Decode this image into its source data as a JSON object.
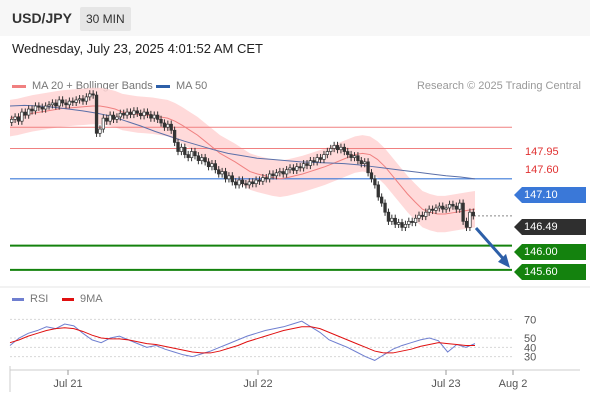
{
  "header": {
    "pair": "USD/JPY",
    "interval": "30 MIN",
    "timestamp": "Wednesday, July 23, 2025 4:01:52 AM CET"
  },
  "legend": {
    "ma20_bb": "MA 20 + Bollinger Bands",
    "ma50": "MA 50",
    "rsi": "RSI",
    "rsi_ma": "9MA",
    "research": "Research © 2025 Trading Central"
  },
  "colors": {
    "bollinger_band": "#ffd4d4",
    "ma20": "#f08080",
    "ma50": "#5a6fa8",
    "resistance": "#f08080",
    "pivot": "#3a78d8",
    "support": "#14820e",
    "arrow": "#2d5fa8",
    "rsi_line": "#6f7fd0",
    "rsi_ma_line": "#e01010",
    "candle": "#333333"
  },
  "chart_data": [
    {
      "type": "candlestick",
      "title": "USD/JPY 30 MIN",
      "x_ticks": [
        "Jul 21",
        "Jul 22",
        "Jul 23",
        "Aug 2"
      ],
      "y_range": [
        145.4,
        148.3
      ],
      "levels": {
        "resistance_2": 147.95,
        "resistance_1": 147.6,
        "pivot": 147.1,
        "current": 146.49,
        "support_1": 146.0,
        "support_2": 145.6
      },
      "level_labels": {
        "resistance_2": "147.95",
        "resistance_1": "147.60",
        "pivot": "147.10",
        "current": "146.49",
        "support_1": "146.00",
        "support_2": "145.60"
      },
      "close": [
        148.08,
        148.12,
        148.05,
        148.2,
        148.15,
        148.25,
        148.22,
        148.3,
        148.28,
        148.25,
        148.3,
        148.32,
        148.35,
        148.3,
        148.4,
        148.35,
        148.32,
        148.38,
        148.36,
        148.4,
        148.42,
        148.38,
        148.45,
        148.5,
        148.48,
        147.85,
        147.92,
        148.1,
        148.05,
        148.15,
        148.08,
        148.12,
        148.18,
        148.15,
        148.2,
        148.16,
        148.22,
        148.18,
        148.14,
        148.2,
        148.16,
        148.1,
        148.15,
        148.08,
        148.02,
        147.95,
        148.0,
        147.9,
        147.7,
        147.55,
        147.62,
        147.5,
        147.45,
        147.55,
        147.48,
        147.4,
        147.45,
        147.38,
        147.3,
        147.35,
        147.25,
        147.18,
        147.22,
        147.1,
        147.15,
        147.05,
        147.0,
        147.08,
        147.02,
        147.0,
        147.05,
        147.02,
        147.08,
        147.06,
        147.12,
        147.1,
        147.18,
        147.15,
        147.2,
        147.22,
        147.18,
        147.25,
        147.28,
        147.24,
        147.3,
        147.28,
        147.35,
        147.32,
        147.4,
        147.38,
        147.45,
        147.42,
        147.5,
        147.55,
        147.6,
        147.65,
        147.58,
        147.62,
        147.55,
        147.5,
        147.45,
        147.48,
        147.4,
        147.35,
        147.38,
        147.2,
        147.1,
        147.0,
        146.8,
        146.7,
        146.55,
        146.4,
        146.45,
        146.35,
        146.38,
        146.3,
        146.35,
        146.4,
        146.38,
        146.45,
        146.5,
        146.48,
        146.55,
        146.6,
        146.58,
        146.62,
        146.65,
        146.6,
        146.62,
        146.68,
        146.65,
        146.6,
        146.7,
        146.4,
        146.3,
        146.55,
        146.49
      ],
      "ma20": [
        148.1,
        148.12,
        148.15,
        148.18,
        148.2,
        148.22,
        148.24,
        148.26,
        148.27,
        148.28,
        148.29,
        148.3,
        148.3,
        148.28,
        148.25,
        148.2,
        148.18,
        148.16,
        148.15,
        148.14,
        148.12,
        148.1,
        148.05,
        147.98,
        147.9,
        147.82,
        147.72,
        147.62,
        147.52,
        147.45,
        147.38,
        147.3,
        147.22,
        147.18,
        147.15,
        147.12,
        147.1,
        147.12,
        147.15,
        147.18,
        147.22,
        147.26,
        147.3,
        147.35,
        147.4,
        147.45,
        147.5,
        147.52,
        147.5,
        147.42,
        147.3,
        147.15,
        147.0,
        146.85,
        146.72,
        146.6,
        146.55,
        146.52,
        146.52,
        146.54,
        146.56,
        146.58,
        146.6
      ],
      "ma50": [
        148.3,
        148.31,
        148.3,
        148.28,
        148.25,
        148.22,
        148.18,
        148.13,
        148.05,
        147.97,
        147.88,
        147.8,
        147.72,
        147.65,
        147.58,
        147.52,
        147.48,
        147.44,
        147.42,
        147.4,
        147.38,
        147.37,
        147.36,
        147.35,
        147.33,
        147.3,
        147.27,
        147.24,
        147.21,
        147.18,
        147.15,
        147.13,
        147.1
      ],
      "bb_upper_offset": 0.3,
      "bb_lower_offset": 0.3
    },
    {
      "type": "line",
      "title": "RSI",
      "y_ticks": [
        "70",
        "50",
        "40",
        "30"
      ],
      "y_range": [
        20,
        80
      ],
      "series": [
        {
          "name": "RSI",
          "values": [
            42,
            50,
            55,
            58,
            62,
            60,
            65,
            63,
            55,
            48,
            45,
            50,
            52,
            48,
            44,
            40,
            42,
            38,
            35,
            32,
            30,
            33,
            36,
            40,
            44,
            48,
            52,
            55,
            58,
            60,
            62,
            65,
            68,
            62,
            56,
            48,
            44,
            40,
            35,
            30,
            26,
            32,
            38,
            42,
            45,
            48,
            50,
            47,
            35,
            43,
            40,
            44
          ]
        },
        {
          "name": "9MA",
          "values": [
            45,
            48,
            52,
            55,
            58,
            60,
            61,
            60,
            57,
            53,
            50,
            49,
            49,
            48,
            46,
            44,
            43,
            41,
            39,
            37,
            35,
            34,
            34,
            36,
            39,
            42,
            46,
            49,
            52,
            55,
            58,
            60,
            62,
            62,
            60,
            56,
            52,
            48,
            44,
            40,
            36,
            34,
            34,
            36,
            38,
            41,
            43,
            45,
            44,
            43,
            42,
            42
          ]
        }
      ]
    }
  ]
}
